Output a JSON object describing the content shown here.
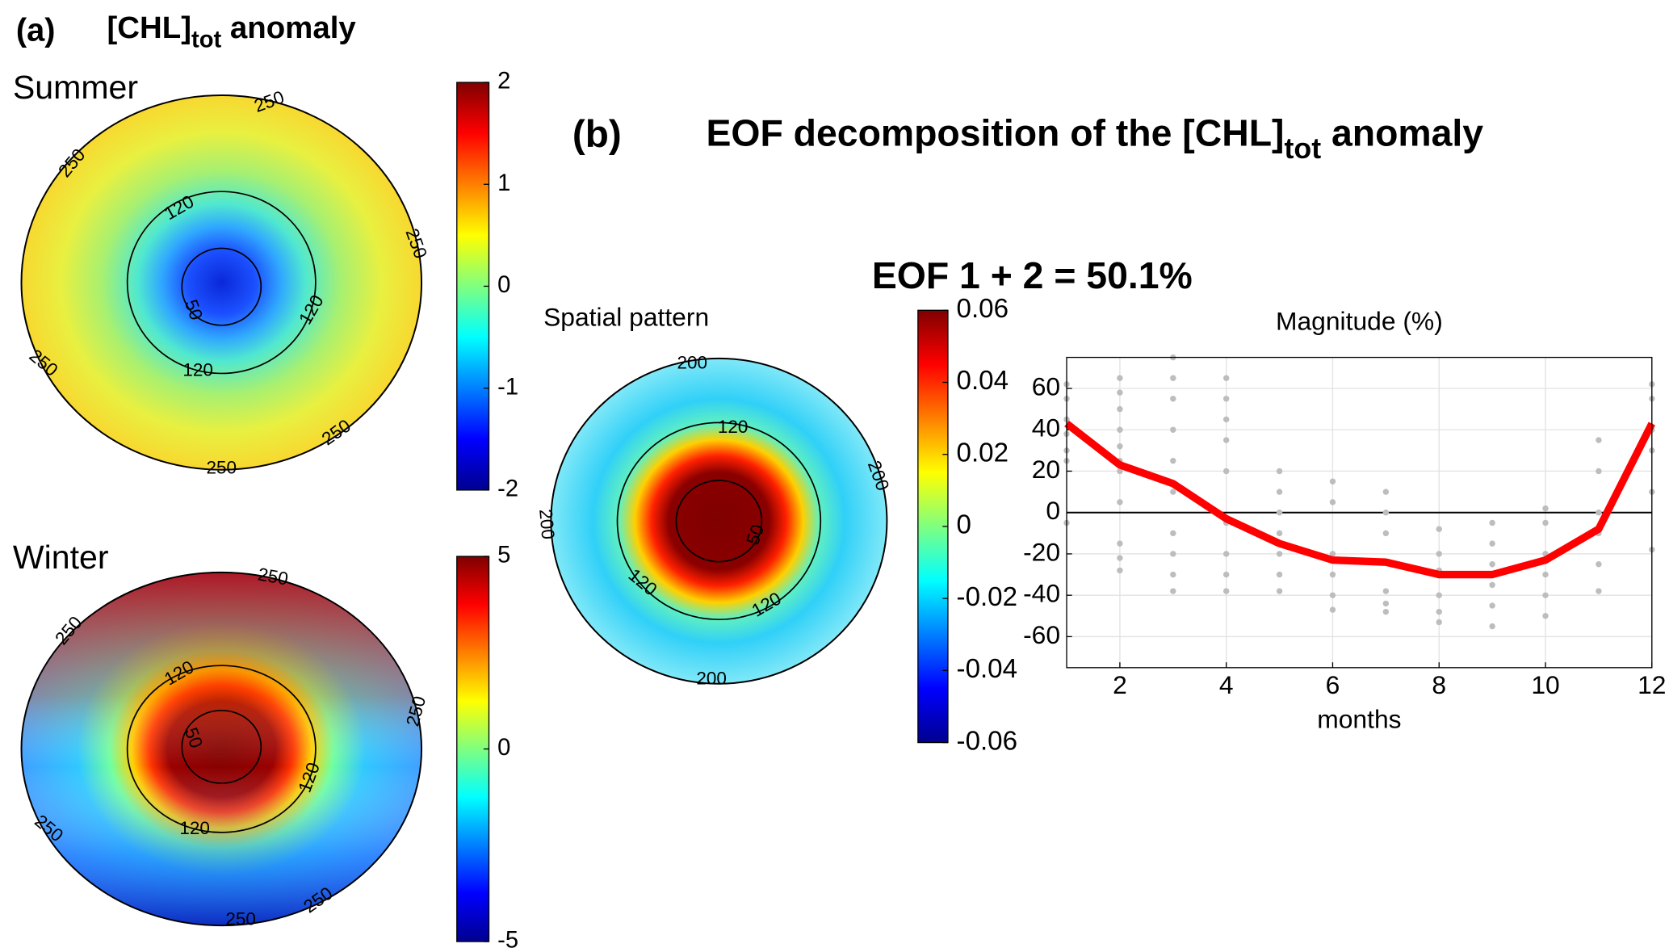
{
  "panels": {
    "a": {
      "label": "(a)",
      "title": "[CHL]",
      "title_sub": "tot",
      "title_end": " anomaly"
    },
    "b": {
      "label": "(b)",
      "title": "EOF decomposition of the [CHL]",
      "title_sub": "tot",
      "title_end": " anomaly",
      "subtitle": "EOF 1 + 2 = 50.1%"
    }
  },
  "chart_data": [
    {
      "type": "map",
      "title": "Summer",
      "colormap": "jet",
      "clim": [
        -2,
        2
      ],
      "cticks": [
        -2,
        -1,
        0,
        1,
        2
      ],
      "contour_labels": [
        "250",
        "250",
        "250",
        "250",
        "250",
        "250",
        "120",
        "120",
        "120",
        "50"
      ]
    },
    {
      "type": "map",
      "title": "Winter",
      "colormap": "jet",
      "clim": [
        -5,
        5
      ],
      "cticks": [
        -5,
        0,
        5
      ],
      "contour_labels": [
        "250",
        "250",
        "250",
        "250",
        "250",
        "250",
        "120",
        "120",
        "120",
        "50"
      ]
    },
    {
      "type": "map",
      "title": "Spatial pattern",
      "colormap": "jet",
      "clim": [
        -0.06,
        0.06
      ],
      "cticks": [
        -0.06,
        -0.04,
        -0.02,
        0,
        0.02,
        0.04,
        0.06
      ],
      "contour_labels": [
        "200",
        "200",
        "200",
        "200",
        "120",
        "120",
        "120",
        "50"
      ]
    },
    {
      "type": "line",
      "title": "Magnitude (%)",
      "x_label": "months",
      "x": [
        1,
        2,
        3,
        4,
        5,
        6,
        7,
        8,
        9,
        10,
        11,
        12
      ],
      "series": [
        {
          "color": "#ff0000",
          "values": [
            43,
            23,
            14,
            -3,
            -15,
            -23,
            -24,
            -30,
            -30,
            -23,
            -8,
            43
          ]
        }
      ],
      "scatter": {
        "color": "#bdbdbd",
        "x": [
          1,
          1,
          1,
          1,
          1,
          1,
          1,
          2,
          2,
          2,
          2,
          2,
          2,
          2,
          2,
          2,
          2,
          2,
          3,
          3,
          3,
          3,
          3,
          3,
          3,
          3,
          3,
          3,
          4,
          4,
          4,
          4,
          4,
          4,
          4,
          4,
          4,
          5,
          5,
          5,
          5,
          5,
          5,
          5,
          6,
          6,
          6,
          6,
          6,
          6,
          7,
          7,
          7,
          7,
          7,
          7,
          8,
          8,
          8,
          8,
          8,
          8,
          9,
          9,
          9,
          9,
          9,
          9,
          10,
          10,
          10,
          10,
          10,
          10,
          11,
          11,
          11,
          11,
          11,
          11,
          12,
          12,
          12,
          12,
          12,
          12
        ],
        "y": [
          62,
          55,
          45,
          38,
          30,
          25,
          -5,
          65,
          58,
          50,
          40,
          32,
          25,
          20,
          5,
          -15,
          -22,
          -28,
          75,
          65,
          55,
          40,
          25,
          10,
          -10,
          -20,
          -30,
          -38,
          65,
          55,
          45,
          35,
          20,
          -5,
          -20,
          -30,
          -38,
          20,
          10,
          0,
          -10,
          -20,
          -30,
          -38,
          15,
          5,
          -20,
          -30,
          -40,
          -47,
          10,
          0,
          -10,
          -38,
          -44,
          -48,
          -8,
          -20,
          -28,
          -40,
          -48,
          -53,
          -5,
          -15,
          -25,
          -35,
          -45,
          -55,
          2,
          -5,
          -20,
          -30,
          -40,
          -50,
          35,
          20,
          0,
          -10,
          -25,
          -38,
          62,
          55,
          40,
          30,
          10,
          -18
        ]
      },
      "hline": 0,
      "xlim": [
        1,
        12
      ],
      "ylim": [
        -75,
        75
      ],
      "xticks": [
        2,
        4,
        6,
        8,
        10,
        12
      ],
      "yticks": [
        -60,
        -40,
        -20,
        0,
        20,
        40,
        60
      ],
      "grid": true
    }
  ]
}
